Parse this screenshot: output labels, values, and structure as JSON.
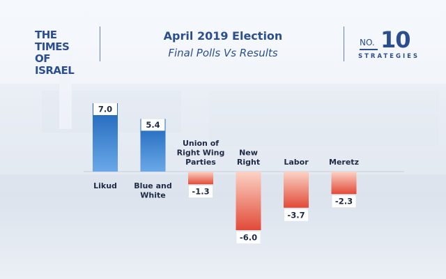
{
  "header": {
    "logo_left_line1": "THE TIMES",
    "logo_left_line2": "OF ISRAEL",
    "title": "April 2019 Election",
    "subtitle": "Final Polls Vs Results",
    "logo_right_no": "NO.",
    "logo_right_number": "10",
    "logo_right_word": "STRATEGIES"
  },
  "colors": {
    "brand": "#2b4e8f",
    "positive": "#1e73c8",
    "negative": "#e8533f"
  },
  "chart_data": {
    "type": "bar",
    "title": "April 2019 Election",
    "subtitle": "Final Polls Vs Results",
    "xlabel": "",
    "ylabel": "",
    "grid": false,
    "ylim": [
      -7,
      8
    ],
    "categories": [
      [
        "Likud"
      ],
      [
        "Blue and",
        "White"
      ],
      [
        "Union of",
        "Right Wing",
        "Parties"
      ],
      [
        "New",
        "Right"
      ],
      [
        "Labor"
      ],
      [
        "Meretz"
      ]
    ],
    "values": [
      7.0,
      5.4,
      -1.3,
      -6.0,
      -3.7,
      -2.3
    ],
    "value_labels": [
      "7.0",
      "5.4",
      "-1.3",
      "-6.0",
      "-3.7",
      "-2.3"
    ]
  }
}
